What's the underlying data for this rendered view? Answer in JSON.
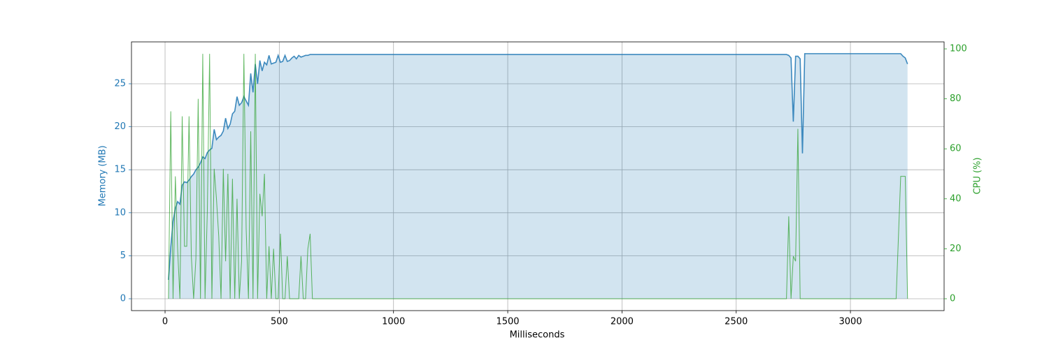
{
  "chart_data": {
    "type": "line",
    "x_label": "Milliseconds",
    "y_label": "Memory (MB)",
    "y2_label": "CPU (%)",
    "x": [
      15,
      25,
      35,
      45,
      55,
      65,
      75,
      85,
      95,
      105,
      115,
      125,
      135,
      145,
      155,
      165,
      175,
      185,
      195,
      205,
      215,
      225,
      235,
      245,
      255,
      265,
      275,
      285,
      295,
      305,
      315,
      325,
      335,
      345,
      355,
      365,
      375,
      385,
      395,
      405,
      415,
      425,
      435,
      445,
      455,
      465,
      475,
      485,
      495,
      505,
      515,
      525,
      535,
      545,
      555,
      565,
      575,
      585,
      595,
      605,
      615,
      625,
      635,
      645,
      800,
      1000,
      1200,
      1500,
      1800,
      2000,
      2200,
      2500,
      2700,
      2720,
      2730,
      2740,
      2750,
      2760,
      2770,
      2780,
      2790,
      2800,
      3000,
      3200,
      3220,
      3230,
      3240,
      3250
    ],
    "series": [
      {
        "name": "Memory (MB)",
        "color": "#1f77b4",
        "fill": true,
        "values": [
          2.2,
          6,
          9,
          10.5,
          11.3,
          11,
          13.2,
          13.6,
          13.5,
          13.8,
          14.2,
          14.5,
          15,
          15.3,
          15.8,
          16.5,
          16.3,
          17,
          17.3,
          17.5,
          19.7,
          18.5,
          18.8,
          19,
          19.5,
          21,
          19.8,
          20.3,
          21.5,
          21.8,
          23.5,
          22.5,
          22.8,
          23.5,
          23,
          22.5,
          26.2,
          24,
          27.3,
          25,
          27.7,
          26.5,
          27.5,
          27.2,
          28.3,
          27.3,
          27.4,
          27.5,
          28.3,
          27.5,
          27.6,
          28.3,
          27.6,
          27.7,
          28,
          28.2,
          27.9,
          28.3,
          28.1,
          28.2,
          28.3,
          28.3,
          28.4,
          28.4,
          28.4,
          28.4,
          28.4,
          28.4,
          28.4,
          28.4,
          28.4,
          28.4,
          28.4,
          28.4,
          28.3,
          28,
          20.6,
          28.2,
          28.2,
          27.9,
          16.9,
          28.5,
          28.5,
          28.5,
          28.5,
          28.2,
          28,
          27.3
        ]
      },
      {
        "name": "CPU (%)",
        "color": "#2ca02c",
        "axis": "y2",
        "values": [
          0,
          75,
          0,
          49,
          20,
          0,
          73,
          21,
          21,
          73,
          17,
          0,
          16,
          80,
          0,
          98,
          0,
          35,
          98,
          0,
          52,
          40,
          25,
          0,
          52,
          15,
          50,
          0,
          48,
          0,
          40,
          0,
          15,
          98,
          28,
          0,
          67,
          0,
          98,
          0,
          42,
          33,
          50,
          0,
          21,
          0,
          20,
          0,
          0,
          26,
          0,
          0,
          17,
          0,
          0,
          0,
          0,
          0,
          17,
          0,
          0,
          20,
          26,
          0,
          0,
          0,
          0,
          0,
          0,
          0,
          0,
          0,
          0,
          0,
          33,
          0,
          17,
          15,
          68,
          0,
          0,
          0,
          0,
          0,
          49,
          49,
          49,
          0
        ]
      }
    ],
    "xlim": [
      -147,
      3410
    ],
    "xticks": [
      0,
      500,
      1000,
      1500,
      2000,
      2500,
      3000
    ],
    "ylim": [
      -1.38,
      29.87
    ],
    "yticks": [
      0,
      5,
      10,
      15,
      20,
      25
    ],
    "y2lim": [
      -4.75,
      102.8
    ],
    "y2ticks": [
      0,
      20,
      40,
      60,
      80,
      100
    ],
    "grid": true
  }
}
